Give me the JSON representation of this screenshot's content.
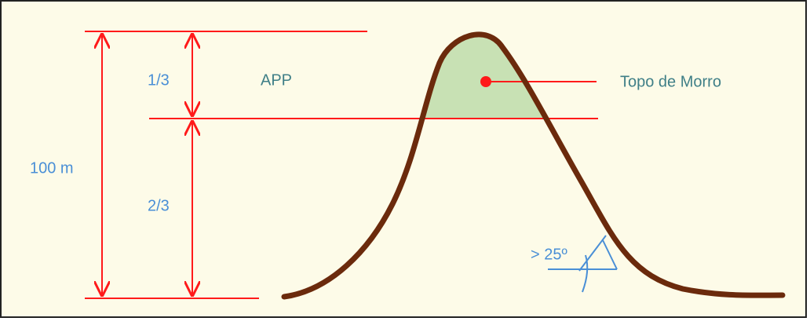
{
  "labels": {
    "top_third": "1/3",
    "app": "APP",
    "hilltop": "Topo de Morro",
    "height": "100 m",
    "lower_two_thirds": "2/3",
    "slope": "> 25º"
  }
}
